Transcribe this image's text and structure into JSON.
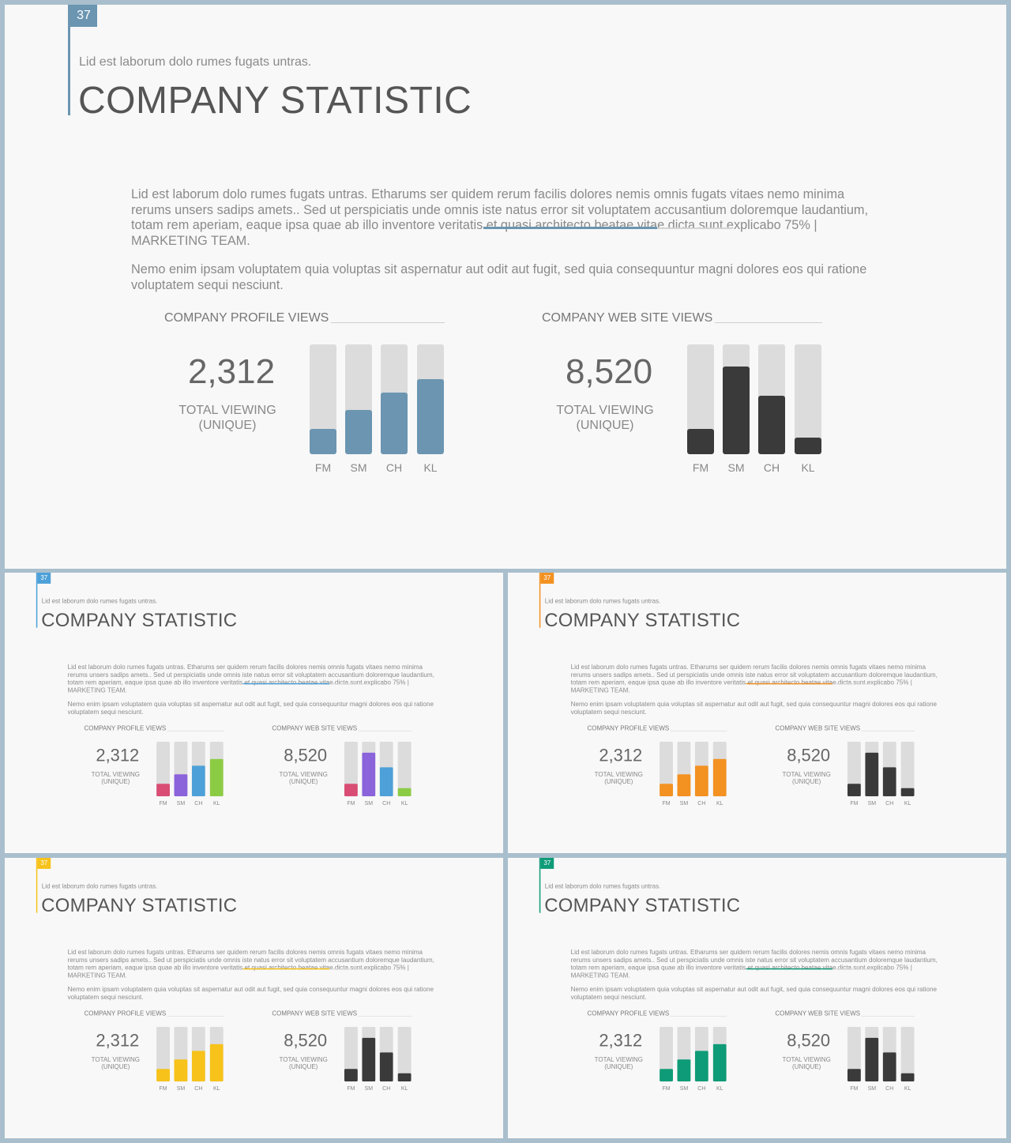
{
  "main": {
    "page_number": "37",
    "subtitle": "Lid est laborum dolo rumes fugats untras.",
    "title": "COMPANY STATISTIC",
    "paragraph1": "Lid est laborum dolo rumes fugats untras. Etharums ser quidem rerum facilis dolores nemis omnis fugats vitaes nemo minima rerums unsers sadips amets.. Sed ut perspiciatis unde omnis iste natus error sit voluptatem accusantium doloremque laudantium, totam rem aperiam, eaque ipsa quae ab illo inventore veritatis et quasi architecto beatae vitae dicta sunt explicabo 75% | MARKETING TEAM.",
    "paragraph2": "Nemo enim ipsam voluptatem quia voluptas sit aspernatur aut odit aut fugit, sed quia consequuntur magni dolores eos qui ratione voluptatem sequi nesciunt.",
    "left_panel": {
      "title": "COMPANY PROFILE VIEWS",
      "total": "2,312",
      "caption_line1": "TOTAL VIEWING",
      "caption_line2": "(UNIQUE)"
    },
    "right_panel": {
      "title": "COMPANY WEB SITE VIEWS",
      "total": "8,520",
      "caption_line1": "TOTAL VIEWING",
      "caption_line2": "(UNIQUE)"
    }
  },
  "colors": {
    "main_accent": "#6b95b1",
    "dark": "#3a3a3a",
    "variant_blue_accent": "#4da0d8",
    "variant_orange_accent": "#f39121",
    "variant_yellow_accent": "#f7c21a",
    "variant_green_accent": "#0e9b77",
    "pink": "#d94d74",
    "purple": "#8b63db",
    "blue": "#4da0d8",
    "lime": "#8ccc45"
  },
  "chart_data": [
    {
      "type": "bar",
      "panel": "COMPANY PROFILE VIEWS",
      "categories": [
        "FM",
        "SM",
        "CH",
        "KL"
      ],
      "values": [
        0.23,
        0.4,
        0.56,
        0.68
      ],
      "ylim": [
        0,
        1
      ],
      "grid": false
    },
    {
      "type": "bar",
      "panel": "COMPANY WEB SITE VIEWS",
      "categories": [
        "FM",
        "SM",
        "CH",
        "KL"
      ],
      "values": [
        0.23,
        0.8,
        0.53,
        0.15
      ],
      "ylim": [
        0,
        1
      ],
      "grid": false
    }
  ],
  "variants": [
    {
      "accent": "#4da0d8",
      "left_colors": [
        "#d94d74",
        "#8b63db",
        "#4da0d8",
        "#8ccc45"
      ],
      "right_colors": [
        "#d94d74",
        "#8b63db",
        "#4da0d8",
        "#8ccc45"
      ]
    },
    {
      "accent": "#f39121",
      "left_colors": [
        "#f39121",
        "#f39121",
        "#f39121",
        "#f39121"
      ],
      "right_colors": [
        "#3a3a3a",
        "#3a3a3a",
        "#3a3a3a",
        "#3a3a3a"
      ]
    },
    {
      "accent": "#f7c21a",
      "left_colors": [
        "#f7c21a",
        "#f7c21a",
        "#f7c21a",
        "#f7c21a"
      ],
      "right_colors": [
        "#3a3a3a",
        "#3a3a3a",
        "#3a3a3a",
        "#3a3a3a"
      ]
    },
    {
      "accent": "#0e9b77",
      "left_colors": [
        "#0e9b77",
        "#0e9b77",
        "#0e9b77",
        "#0e9b77"
      ],
      "right_colors": [
        "#3a3a3a",
        "#3a3a3a",
        "#3a3a3a",
        "#3a3a3a"
      ]
    }
  ],
  "main_colors": {
    "accent": "#6b95b1",
    "left_colors": [
      "#6b95b1",
      "#6b95b1",
      "#6b95b1",
      "#6b95b1"
    ],
    "right_colors": [
      "#3a3a3a",
      "#3a3a3a",
      "#3a3a3a",
      "#3a3a3a"
    ]
  }
}
